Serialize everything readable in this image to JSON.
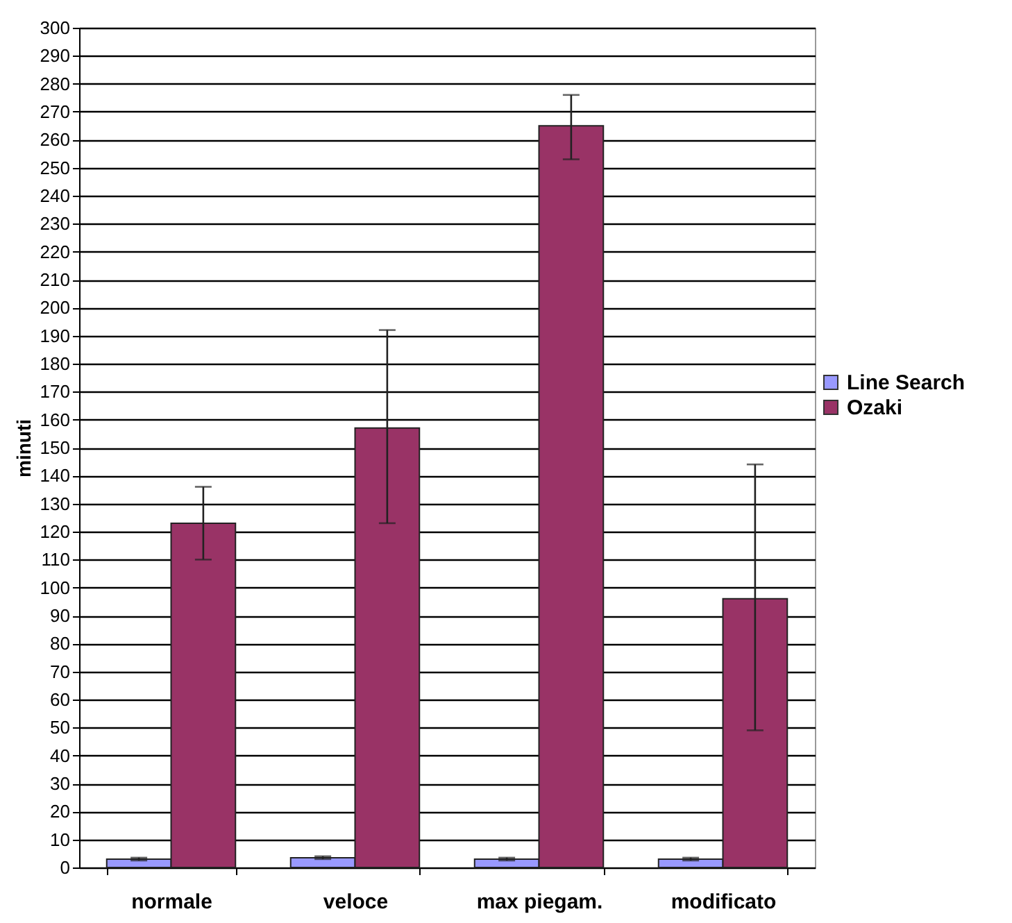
{
  "chart_data": {
    "type": "bar",
    "ylabel": "minuti",
    "categories": [
      "normale",
      "veloce",
      "max piegam.",
      "modificato"
    ],
    "series": [
      {
        "name": "Line Search",
        "color": "#9999ff",
        "values": [
          3,
          3.5,
          3,
          3
        ],
        "errors": [
          0.5,
          0.5,
          0.5,
          0.5
        ]
      },
      {
        "name": "Ozaki",
        "color": "#993366",
        "values": [
          123,
          157,
          265,
          96
        ],
        "errors": [
          [
            110,
            136
          ],
          [
            123,
            192
          ],
          [
            253,
            276
          ],
          [
            49,
            144
          ]
        ]
      }
    ],
    "ylim": [
      0,
      300
    ],
    "yticks": [
      0,
      10,
      20,
      30,
      40,
      50,
      60,
      70,
      80,
      90,
      100,
      110,
      120,
      130,
      140,
      150,
      160,
      170,
      180,
      190,
      200,
      210,
      220,
      230,
      240,
      250,
      260,
      270,
      280,
      290,
      300
    ],
    "grid": "y",
    "legend": "right"
  }
}
